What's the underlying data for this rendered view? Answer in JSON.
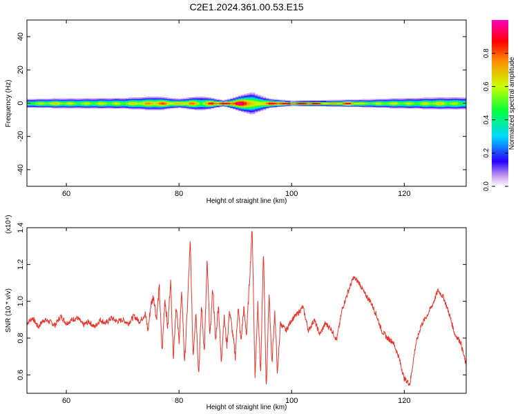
{
  "title": "C2E1.2024.361.00.53.E15",
  "chart_data": [
    {
      "type": "heatmap",
      "xlabel": "Height of straight line (km)",
      "ylabel": "Frequency (Hz)",
      "xlim": [
        53,
        131
      ],
      "ylim": [
        -50,
        50
      ],
      "x_ticks": [
        60,
        80,
        100,
        120
      ],
      "y_ticks": [
        40,
        20,
        0,
        -20,
        -40
      ],
      "x_tick_labels": [
        "60",
        "80",
        "100",
        "120"
      ],
      "y_tick_labels": [
        "40",
        "20",
        "0",
        "-20",
        "-40"
      ],
      "colorbar": {
        "label": "Normalized spectral amplitude",
        "range": [
          0,
          1
        ],
        "ticks": [
          0.0,
          0.2,
          0.4,
          0.6,
          0.8
        ],
        "tick_labels": [
          "0.0",
          "0.2",
          "0.4",
          "0.6",
          "0.8"
        ]
      },
      "band": {
        "center_freq": 0,
        "halfwidth_hz": [
          [
            53,
            2.0
          ],
          [
            60,
            2.2
          ],
          [
            70,
            2.4
          ],
          [
            76,
            3.0
          ],
          [
            80,
            2.0
          ],
          [
            84,
            3.2
          ],
          [
            88,
            1.2
          ],
          [
            93,
            5.0
          ],
          [
            96,
            2.0
          ],
          [
            100,
            1.0
          ],
          [
            110,
            1.5
          ],
          [
            118,
            2.2
          ],
          [
            125,
            2.6
          ],
          [
            131,
            2.8
          ]
        ],
        "peak_amplitude": [
          [
            53,
            0.55
          ],
          [
            58,
            0.7
          ],
          [
            62,
            0.6
          ],
          [
            66,
            0.65
          ],
          [
            70,
            0.62
          ],
          [
            74,
            0.75
          ],
          [
            77,
            0.85
          ],
          [
            80,
            0.7
          ],
          [
            82,
            0.85
          ],
          [
            84,
            0.6
          ],
          [
            86,
            0.95
          ],
          [
            92,
            1.0
          ],
          [
            93.5,
            0.6
          ],
          [
            95,
            0.8
          ],
          [
            97,
            1.0
          ],
          [
            104,
            1.0
          ],
          [
            107,
            0.75
          ],
          [
            110,
            0.95
          ],
          [
            113,
            0.6
          ],
          [
            118,
            0.65
          ],
          [
            122,
            0.6
          ],
          [
            126,
            0.7
          ],
          [
            131,
            0.55
          ]
        ]
      }
    },
    {
      "type": "line",
      "xlabel": "Height of straight line (km)",
      "ylabel": "SNR (10 * v/v)",
      "y_multiplier_label": "(x10⁴)",
      "xlim": [
        53,
        131
      ],
      "ylim": [
        0.5,
        1.4
      ],
      "x_ticks": [
        60,
        80,
        100,
        120
      ],
      "y_ticks": [
        0.6,
        0.8,
        1.0,
        1.2,
        1.4
      ],
      "x_tick_labels": [
        "60",
        "80",
        "100",
        "120"
      ],
      "y_tick_labels": [
        "0.6",
        "0.8",
        "1.0",
        "1.2",
        "1.4"
      ],
      "color": "#e8342a",
      "series": [
        {
          "x": [
            53,
            54,
            55,
            56,
            57,
            58,
            59,
            60,
            61,
            62,
            63,
            64,
            65,
            66,
            67,
            68,
            69,
            70,
            71,
            72,
            73,
            74,
            74.5,
            75,
            75.5,
            76,
            76.5,
            77,
            77.5,
            78,
            78.5,
            79,
            79.5,
            80,
            80.5,
            81,
            81.5,
            82,
            82.5,
            83,
            83.5,
            84,
            84.5,
            85,
            85.5,
            86,
            86.5,
            87,
            87.5,
            88,
            88.5,
            89,
            89.5,
            90,
            90.5,
            91,
            91.5,
            92,
            92.5,
            93,
            93.5,
            94,
            94.5,
            95,
            95.5,
            96,
            96.5,
            97,
            97.5,
            98,
            99,
            100,
            101,
            102,
            103,
            104,
            105,
            106,
            107,
            108,
            109,
            110,
            111,
            112,
            113,
            114,
            115,
            116,
            117,
            118,
            119,
            120,
            121,
            122,
            123,
            124,
            125,
            126,
            127,
            128,
            129,
            130,
            131
          ],
          "y": [
            0.88,
            0.91,
            0.86,
            0.9,
            0.89,
            0.87,
            0.92,
            0.88,
            0.9,
            0.91,
            0.87,
            0.89,
            0.86,
            0.9,
            0.88,
            0.91,
            0.89,
            0.9,
            0.88,
            0.92,
            0.89,
            0.93,
            0.84,
            0.98,
            1.03,
            0.9,
            1.08,
            0.72,
            1.02,
            0.85,
            1.12,
            0.7,
            0.98,
            0.78,
            1.05,
            0.66,
            0.97,
            1.33,
            0.7,
            0.95,
            0.6,
            0.98,
            0.72,
            1.22,
            0.8,
            1.08,
            0.78,
            0.99,
            0.67,
            0.92,
            0.76,
            0.95,
            0.83,
            0.7,
            0.97,
            0.78,
            0.96,
            0.82,
            1.1,
            1.4,
            0.58,
            1.0,
            0.6,
            1.28,
            0.52,
            1.05,
            0.65,
            0.95,
            0.6,
            0.88,
            0.84,
            0.9,
            0.93,
            0.97,
            0.84,
            0.9,
            0.82,
            0.88,
            0.85,
            0.79,
            0.96,
            1.05,
            1.13,
            1.1,
            1.04,
            1.0,
            0.93,
            0.84,
            0.8,
            0.78,
            0.7,
            0.58,
            0.55,
            0.76,
            0.87,
            0.92,
            0.98,
            1.06,
            1.02,
            0.93,
            0.82,
            0.78,
            0.65
          ]
        }
      ]
    }
  ]
}
